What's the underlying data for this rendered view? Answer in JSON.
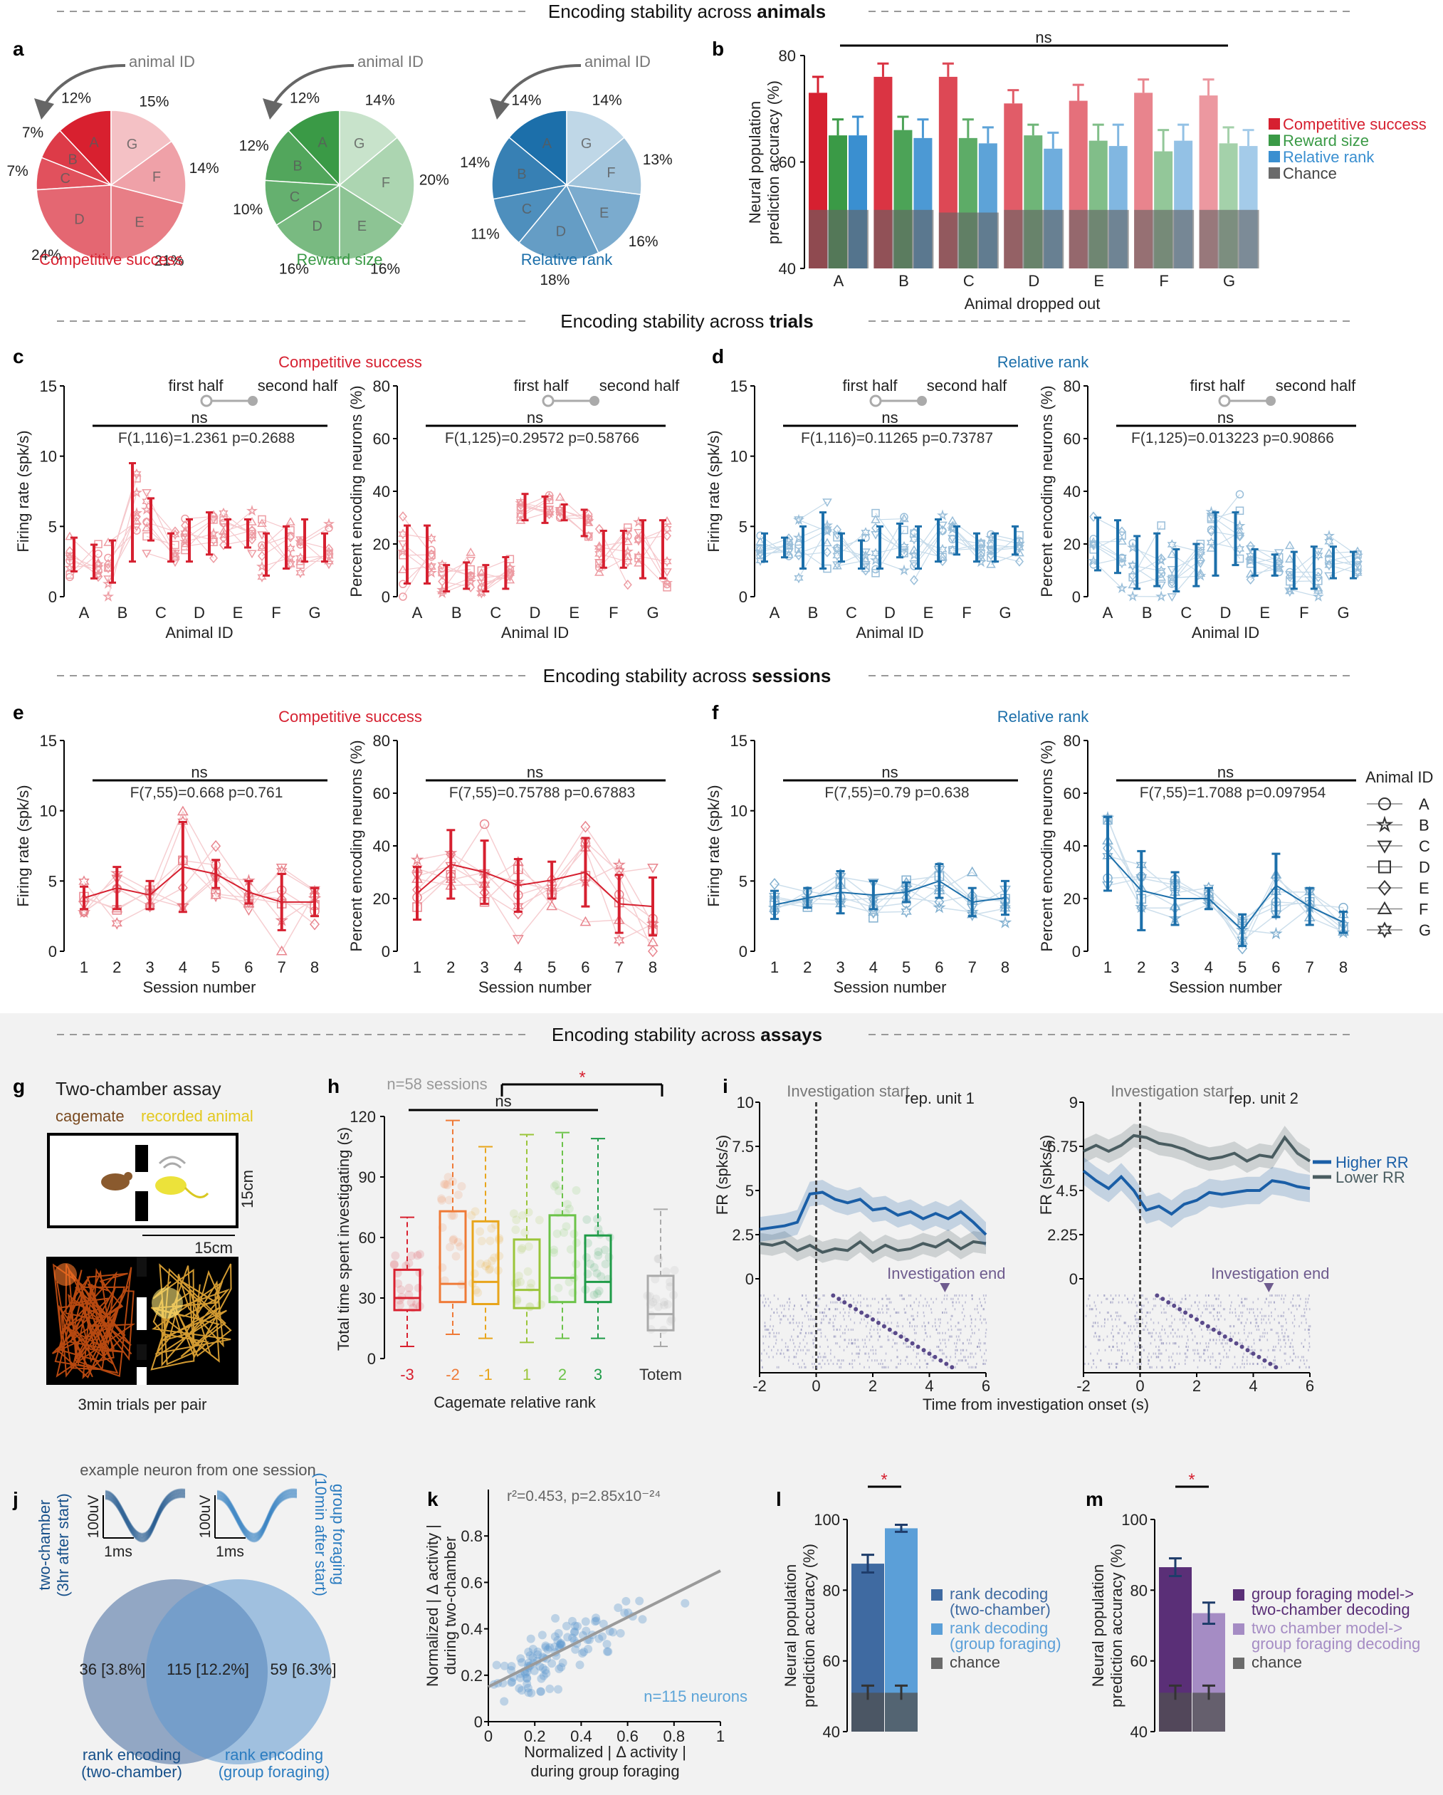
{
  "section_titles": {
    "animals": {
      "pre": "Encoding stability across ",
      "bold": "animals"
    },
    "trials": {
      "pre": "Encoding stability across ",
      "bold": "trials"
    },
    "sessions": {
      "pre": "Encoding stability across ",
      "bold": "sessions"
    },
    "assays": {
      "pre": "Encoding stability across ",
      "bold": "assays"
    }
  },
  "panel_letters": [
    "a",
    "b",
    "c",
    "d",
    "e",
    "f",
    "g",
    "h",
    "i",
    "j",
    "k",
    "l",
    "m"
  ],
  "colors": {
    "red": "#d62030",
    "green": "#3a9a46",
    "blue": "#1c6faa",
    "gray": "#6b6b6b",
    "purple": "#5a2f77",
    "lightpurple": "#a58cc4"
  },
  "panel_a": {
    "arrow_label": "animal ID",
    "pies": [
      {
        "title": "Competitive success",
        "color": "#d8202f",
        "labels": [
          "A",
          "B",
          "C",
          "D",
          "E",
          "F",
          "G"
        ],
        "values": [
          12,
          7,
          7,
          24,
          21,
          14,
          15
        ],
        "value_labels": [
          "12%",
          "7%",
          "7%",
          "24%",
          "21%",
          "14%",
          "15%"
        ]
      },
      {
        "title": "Reward size",
        "color": "#3a9a46",
        "labels": [
          "A",
          "B",
          "C",
          "D",
          "E",
          "F",
          "G"
        ],
        "values": [
          12,
          12,
          10,
          16,
          16,
          20,
          14
        ],
        "value_labels": [
          "12%",
          "12%",
          "10%",
          "16%",
          "16%",
          "20%",
          "14%"
        ]
      },
      {
        "title": "Relative rank",
        "color": "#1c6faa",
        "labels": [
          "A",
          "B",
          "C",
          "D",
          "E",
          "F",
          "G"
        ],
        "values": [
          14,
          14,
          11,
          18,
          16,
          13,
          14
        ],
        "value_labels": [
          "14%",
          "14%",
          "11%",
          "18%",
          "16%",
          "13%",
          "14%"
        ]
      }
    ]
  },
  "chart_data": [
    {
      "panel": "b",
      "type": "bar",
      "ylabel": "Neural population prediction accuracy (%)",
      "xlabel": "Animal dropped out",
      "categories": [
        "A",
        "B",
        "C",
        "D",
        "E",
        "F",
        "G"
      ],
      "ylim": [
        40,
        80
      ],
      "yticks": [
        "40",
        "60",
        "80"
      ],
      "significance": "ns",
      "series": [
        {
          "name": "Competitive success",
          "values": [
            73,
            76,
            76,
            71,
            71.5,
            73,
            72.5
          ],
          "err": [
            3,
            2.5,
            2.5,
            2.5,
            3,
            2.5,
            3
          ]
        },
        {
          "name": "Reward size",
          "values": [
            65,
            66,
            64.5,
            65,
            64,
            62,
            63.5
          ],
          "err": [
            3,
            2.5,
            3.5,
            2,
            3,
            4,
            3
          ]
        },
        {
          "name": "Relative rank",
          "values": [
            65,
            64.5,
            63.5,
            62.5,
            63,
            64,
            63
          ],
          "err": [
            3.5,
            3.5,
            3,
            3,
            4,
            3,
            3
          ]
        },
        {
          "name": "Chance",
          "values": [
            51,
            51,
            50.5,
            51,
            51,
            51,
            51
          ],
          "err": [
            0,
            0,
            0,
            0,
            0,
            0,
            0
          ]
        }
      ]
    },
    {
      "panel": "c-left",
      "type": "scatter",
      "section_label": "Competitive success",
      "legend_labels": [
        "first half",
        "second half"
      ],
      "ylabel": "Firing rate (spk/s)",
      "xlabel": "Animal ID",
      "categories": [
        "A",
        "B",
        "C",
        "D",
        "E",
        "F",
        "G"
      ],
      "ylim": [
        0,
        15
      ],
      "yticks": [
        "0",
        "5",
        "10",
        "15"
      ],
      "significance": "ns",
      "stats": "F(1,116)=1.2361 p=0.2688",
      "first_half": [
        [
          3,
          1.2
        ],
        [
          2.5,
          1.5
        ],
        [
          5.5,
          1.5
        ],
        [
          4,
          1.5
        ],
        [
          4.5,
          1
        ],
        [
          3,
          1.5
        ],
        [
          4,
          1.5
        ]
      ],
      "second_half": [
        [
          2.5,
          1.2
        ],
        [
          6,
          3.5
        ],
        [
          3.5,
          1
        ],
        [
          4.5,
          1.5
        ],
        [
          4.5,
          1
        ],
        [
          3.5,
          1.5
        ],
        [
          3.5,
          1
        ]
      ]
    },
    {
      "panel": "c-right",
      "type": "scatter",
      "ylabel": "Percent encoding neurons (%)",
      "xlabel": "Animal ID",
      "categories": [
        "A",
        "B",
        "C",
        "D",
        "E",
        "F",
        "G"
      ],
      "ylim": [
        0,
        80
      ],
      "yticks": [
        "0",
        "20",
        "40",
        "60",
        "80"
      ],
      "significance": "ns",
      "stats": "F(1,125)=0.29572 p=0.58766",
      "first_half": [
        [
          16,
          11
        ],
        [
          7,
          5
        ],
        [
          7,
          5
        ],
        [
          34,
          5
        ],
        [
          32,
          3
        ],
        [
          18,
          7
        ],
        [
          18,
          11
        ]
      ],
      "second_half": [
        [
          16,
          11
        ],
        [
          8,
          5
        ],
        [
          9,
          6
        ],
        [
          33,
          5
        ],
        [
          28,
          5
        ],
        [
          18,
          7
        ],
        [
          18,
          11
        ]
      ]
    },
    {
      "panel": "d-left",
      "type": "scatter",
      "section_label": "Relative rank",
      "legend_labels": [
        "first half",
        "second half"
      ],
      "ylabel": "Firing rate (spk/s)",
      "xlabel": "Animal ID",
      "categories": [
        "A",
        "B",
        "C",
        "D",
        "E",
        "F",
        "G"
      ],
      "ylim": [
        0,
        15
      ],
      "yticks": [
        "0",
        "5",
        "10",
        "15"
      ],
      "significance": "ns",
      "stats": "F(1,116)=0.11265 p=0.73787",
      "first_half": [
        [
          3.5,
          1
        ],
        [
          3.5,
          1.5
        ],
        [
          3.5,
          1
        ],
        [
          3.5,
          1.5
        ],
        [
          3.5,
          1.5
        ],
        [
          4,
          1
        ],
        [
          3.5,
          1
        ]
      ],
      "second_half": [
        [
          3.5,
          0.7
        ],
        [
          4,
          2
        ],
        [
          3,
          1
        ],
        [
          4,
          1.2
        ],
        [
          4,
          1.5
        ],
        [
          3.5,
          1
        ],
        [
          4,
          1
        ]
      ]
    },
    {
      "panel": "d-right",
      "type": "scatter",
      "ylabel": "Percent encoding neurons (%)",
      "xlabel": "Animal ID",
      "categories": [
        "A",
        "B",
        "C",
        "D",
        "E",
        "F",
        "G"
      ],
      "ylim": [
        0,
        80
      ],
      "yticks": [
        "0",
        "20",
        "40",
        "60",
        "80"
      ],
      "significance": "ns",
      "stats": "F(1,125)=0.013223 p=0.90866",
      "first_half": [
        [
          20,
          10
        ],
        [
          13,
          10
        ],
        [
          10,
          8
        ],
        [
          20,
          12
        ],
        [
          13,
          5
        ],
        [
          10,
          7
        ],
        [
          13,
          6
        ]
      ],
      "second_half": [
        [
          19,
          10
        ],
        [
          14,
          10
        ],
        [
          12,
          8
        ],
        [
          22,
          10
        ],
        [
          12,
          4
        ],
        [
          11,
          8
        ],
        [
          12,
          5
        ]
      ]
    },
    {
      "panel": "e-left",
      "type": "line",
      "section_label": "Competitive success",
      "ylabel": "Firing rate (spk/s)",
      "xlabel": "Session number",
      "categories": [
        "1",
        "2",
        "3",
        "4",
        "5",
        "6",
        "7",
        "8"
      ],
      "ylim": [
        0,
        15
      ],
      "yticks": [
        "0",
        "5",
        "10",
        "15"
      ],
      "significance": "ns",
      "stats": "F(7,55)=0.668 p=0.761",
      "means": [
        [
          3.8,
          0.8
        ],
        [
          4.5,
          1.5
        ],
        [
          4,
          1
        ],
        [
          6,
          3.2
        ],
        [
          5.5,
          1
        ],
        [
          4.2,
          0.8
        ],
        [
          3.5,
          2
        ],
        [
          3.5,
          1
        ]
      ]
    },
    {
      "panel": "e-right",
      "type": "line",
      "ylabel": "Percent encoding neurons (%)",
      "xlabel": "Session number",
      "categories": [
        "1",
        "2",
        "3",
        "4",
        "5",
        "6",
        "7",
        "8"
      ],
      "ylim": [
        0,
        80
      ],
      "yticks": [
        "0",
        "20",
        "40",
        "60",
        "80"
      ],
      "significance": "ns",
      "stats": "F(7,55)=0.75788 p=0.67883",
      "means": [
        [
          22,
          10
        ],
        [
          33,
          13
        ],
        [
          30,
          12
        ],
        [
          25,
          10
        ],
        [
          27,
          7
        ],
        [
          30,
          13
        ],
        [
          18,
          11
        ],
        [
          17,
          11
        ]
      ]
    },
    {
      "panel": "f-left",
      "type": "line",
      "section_label": "Relative rank",
      "ylabel": "Firing rate (spk/s)",
      "xlabel": "Session number",
      "categories": [
        "1",
        "2",
        "3",
        "4",
        "5",
        "6",
        "7",
        "8"
      ],
      "ylim": [
        0,
        15
      ],
      "yticks": [
        "0",
        "5",
        "10",
        "15"
      ],
      "significance": "ns",
      "stats": "F(7,55)=0.79 p=0.638",
      "means": [
        [
          3.3,
          1
        ],
        [
          3.8,
          0.7
        ],
        [
          4.2,
          1.5
        ],
        [
          4,
          1
        ],
        [
          4.2,
          0.7
        ],
        [
          5,
          1.2
        ],
        [
          3.5,
          1
        ],
        [
          3.8,
          1.2
        ]
      ]
    },
    {
      "panel": "f-right",
      "type": "line",
      "ylabel": "Percent encoding neurons (%)",
      "xlabel": "Session number",
      "categories": [
        "1",
        "2",
        "3",
        "4",
        "5",
        "6",
        "7",
        "8"
      ],
      "ylim": [
        0,
        80
      ],
      "yticks": [
        "0",
        "20",
        "40",
        "60",
        "80"
      ],
      "significance": "ns",
      "stats": "F(7,55)=1.7088 p=0.097954",
      "means": [
        [
          37,
          14
        ],
        [
          23,
          15
        ],
        [
          20,
          10
        ],
        [
          20,
          4
        ],
        [
          8,
          6
        ],
        [
          25,
          12
        ],
        [
          17,
          7
        ],
        [
          11,
          4
        ]
      ]
    },
    {
      "panel": "h",
      "type": "box",
      "title": "n=58 sessions",
      "ylabel": "Total time spent investigating (s)",
      "xlabel": "Cagemate relative rank",
      "categories": [
        "-3",
        "-2",
        "-1",
        "1",
        "2",
        "3",
        "Totem"
      ],
      "ylim": [
        0,
        120
      ],
      "yticks": [
        "0",
        "30",
        "60",
        "90",
        "120"
      ],
      "significance_labels": [
        "ns",
        "*"
      ],
      "boxes": [
        [
          6,
          24,
          30,
          44,
          70
        ],
        [
          12,
          28,
          37,
          73,
          118
        ],
        [
          10,
          27,
          38,
          68,
          105
        ],
        [
          8,
          25,
          34,
          59,
          111
        ],
        [
          10,
          28,
          40,
          71,
          112
        ],
        [
          10,
          28,
          38,
          61,
          109
        ],
        [
          6,
          14,
          22,
          41,
          74
        ]
      ]
    },
    {
      "panel": "i",
      "type": "line",
      "xlabel": "Time from investigation onset (s)",
      "xlim": [
        -2,
        6
      ],
      "xticks": [
        "-2",
        "0",
        "2",
        "4",
        "6"
      ],
      "legend": [
        "Higher RR",
        "Lower RR"
      ],
      "marker_start": "Investigation start",
      "marker_end": "Investigation end",
      "units": [
        {
          "title": "rep. unit 1",
          "ylabel": "FR (spks/s)",
          "ylim": [
            0,
            10
          ],
          "yticks": [
            "0",
            "2.5",
            "5",
            "7.5",
            "10"
          ],
          "higher_rr": [
            2.8,
            2.9,
            3.0,
            3.2,
            4.8,
            4.9,
            4.5,
            4.3,
            4.5,
            3.9,
            4.0,
            3.6,
            3.8,
            3.4,
            3.7,
            3.4,
            3.8,
            3.2,
            2.5
          ],
          "lower_rr": [
            2.0,
            1.9,
            2.1,
            1.6,
            1.9,
            1.5,
            1.7,
            1.6,
            2.1,
            1.5,
            1.9,
            1.6,
            1.7,
            2.0,
            1.8,
            2.2,
            1.7,
            2.1,
            2.0
          ]
        },
        {
          "title": "rep. unit 2",
          "ylabel": "FR (spks/s)",
          "ylim": [
            0,
            9
          ],
          "yticks": [
            "0",
            "2.25",
            "4.5",
            "6.75",
            "9"
          ],
          "higher_rr": [
            5.5,
            5.0,
            4.6,
            5.2,
            4.5,
            3.5,
            3.7,
            3.3,
            3.8,
            4.0,
            4.4,
            4.3,
            4.4,
            4.5,
            4.5,
            5.0,
            4.9,
            4.7,
            4.6
          ],
          "lower_rr": [
            6.5,
            6.8,
            6.5,
            6.8,
            7.3,
            7.2,
            6.9,
            6.8,
            6.6,
            6.3,
            6.1,
            6.2,
            6.4,
            6.0,
            6.3,
            6.2,
            7.2,
            6.4,
            6.0
          ]
        }
      ]
    },
    {
      "panel": "k",
      "type": "scatter",
      "ylabel": "Normalized | Δ activity | during two-chamber",
      "xlabel": "Normalized | Δ activity | during group foraging",
      "xlim": [
        0,
        1
      ],
      "ylim": [
        0,
        1
      ],
      "xticks": [
        "0",
        "0.2",
        "0.4",
        "0.6",
        "0.8",
        "1"
      ],
      "yticks": [
        "0",
        "0.2",
        "0.4",
        "0.6",
        "0.8"
      ],
      "fit": {
        "slope": 0.5,
        "intercept": 0.15
      },
      "stats": "r²=0.453, p=2.85x10⁻²⁴",
      "n_label": "n=115 neurons"
    },
    {
      "panel": "l",
      "type": "bar",
      "ylabel": "Neural population prediction accuracy (%)",
      "ylim": [
        40,
        100
      ],
      "yticks": [
        "40",
        "60",
        "80",
        "100"
      ],
      "significance": "*",
      "values": [
        87.5,
        97.5
      ],
      "err": [
        2.5,
        1
      ],
      "chance": [
        51,
        51
      ],
      "chance_err": [
        2,
        2
      ],
      "legend": [
        "rank decoding (two-chamber)",
        "rank decoding (group foraging)",
        "chance"
      ]
    },
    {
      "panel": "m",
      "type": "bar",
      "ylabel": "Neural population prediction accuracy (%)",
      "ylim": [
        40,
        100
      ],
      "yticks": [
        "40",
        "60",
        "80",
        "100"
      ],
      "significance": "*",
      "values": [
        86.5,
        73.5
      ],
      "err": [
        2.5,
        3
      ],
      "chance": [
        51,
        51
      ],
      "chance_err": [
        2,
        2
      ],
      "legend": [
        "group foraging model-> two-chamber decoding",
        "two chamber model-> group foraging decoding",
        "chance"
      ]
    }
  ],
  "legend_b": [
    "Competitive success",
    "Reward size",
    "Relative rank",
    "Chance"
  ],
  "animal_legend": {
    "title": "Animal ID",
    "items": [
      "A",
      "B",
      "C",
      "D",
      "E",
      "F",
      "G"
    ]
  },
  "panel_g": {
    "title": "Two-chamber assay",
    "cagemate": "cagemate",
    "recorded": "recorded animal",
    "dim_v": "15cm",
    "dim_h": "15cm",
    "caption": "3min trials per pair"
  },
  "panel_j": {
    "title": "example neuron from one session",
    "left_label": "two-chamber (3hr after start)",
    "right_label": "group foraging (10min after start)",
    "scale_v": "100uV",
    "scale_h": "1ms",
    "venn_left": "36 [3.8%]",
    "venn_mid": "115 [12.2%]",
    "venn_right": "59 [6.3%]",
    "venn_left_caption": "rank encoding (two-chamber)",
    "venn_right_caption": "rank encoding (group foraging)"
  }
}
